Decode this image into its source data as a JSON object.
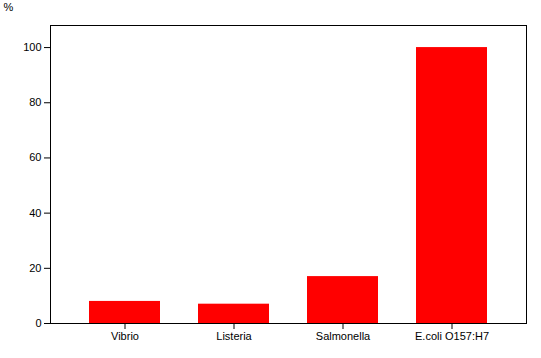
{
  "chart_data": {
    "type": "bar",
    "categories": [
      "Vibrio",
      "Listeria",
      "Salmonella",
      "E.coli O157:H7"
    ],
    "values": [
      8,
      7,
      17,
      100
    ],
    "color": "#FF0000",
    "ylabel": "%",
    "ylim": [
      0,
      108
    ],
    "yticks": [
      0,
      20,
      40,
      60,
      80,
      100
    ],
    "grid": false
  }
}
